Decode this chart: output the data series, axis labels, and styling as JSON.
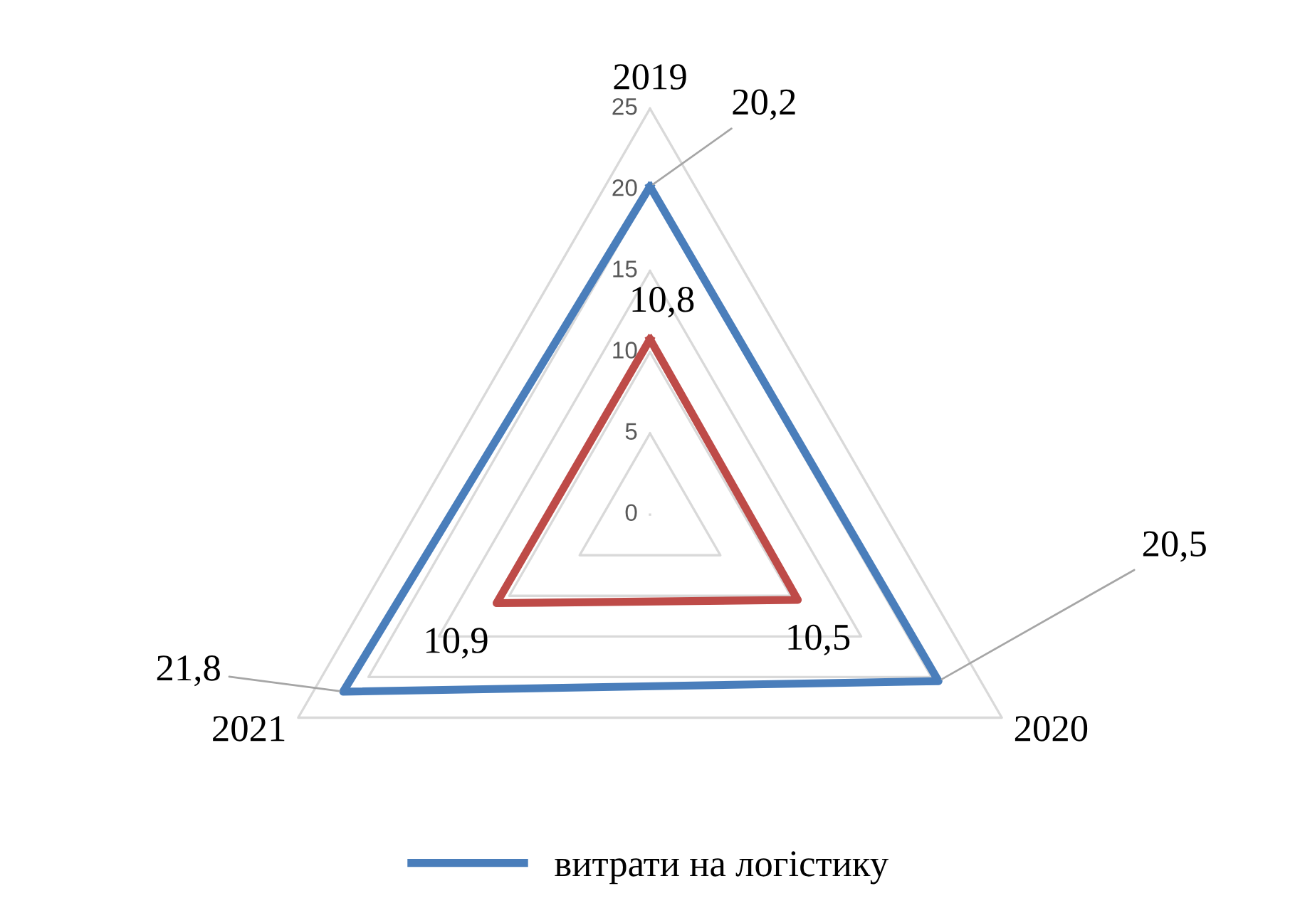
{
  "chart_data": {
    "type": "radar",
    "categories": [
      "2019",
      "2020",
      "2021"
    ],
    "series": [
      {
        "name": "витрати на логістику",
        "color": "#4a7ebb",
        "values": [
          20.2,
          20.5,
          21.8
        ],
        "value_labels": [
          "20,2",
          "20,5",
          "21,8"
        ]
      },
      {
        "color": "#be4b48",
        "values": [
          10.8,
          10.5,
          10.9
        ],
        "value_labels": [
          "10,8",
          "10,5",
          "10,9"
        ]
      }
    ],
    "ylim": [
      0,
      25
    ],
    "yticks": [
      0,
      5,
      10,
      15,
      20,
      25
    ],
    "grid": true,
    "legend": "bottom",
    "line_style": "solid",
    "marker": "none"
  }
}
